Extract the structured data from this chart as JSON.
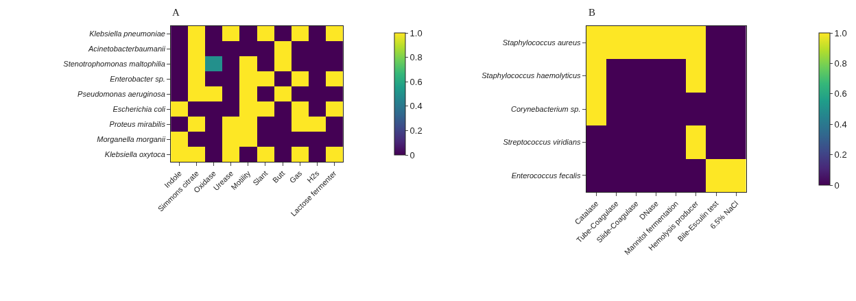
{
  "chart_data": [
    {
      "type": "heatmap",
      "title": "A",
      "categories": [
        "Indole",
        "Simmons citrate",
        "Oxidase",
        "Urease",
        "Motility",
        "Slant",
        "Butt",
        "Gas",
        "H2s",
        "Lactose fermenter"
      ],
      "y_categories": [
        "Klebsiella pneumoniae",
        "Acinetobacterbaumanii",
        "Stenotrophomonas maltophilia",
        "Enterobacter sp.",
        "Pseudomonas aeruginosa",
        "Escherichia coli",
        "Proteus mirabilis",
        "Morganella morganii",
        "Klebsiella oxytoca"
      ],
      "cells": [
        [
          0,
          1,
          0,
          1,
          0,
          1,
          0,
          1,
          0,
          1
        ],
        [
          0,
          1,
          0,
          0,
          0,
          0,
          1,
          0,
          0,
          0
        ],
        [
          0,
          1,
          0.5,
          0,
          1,
          0,
          1,
          0,
          0,
          0
        ],
        [
          0,
          1,
          0,
          0,
          1,
          1,
          0,
          1,
          0,
          1
        ],
        [
          0,
          1,
          1,
          0,
          1,
          0,
          1,
          0,
          0,
          0
        ],
        [
          1,
          0,
          0,
          0,
          1,
          1,
          0,
          1,
          0,
          1
        ],
        [
          0,
          1,
          0,
          1,
          1,
          0,
          0,
          1,
          1,
          0
        ],
        [
          1,
          0,
          0,
          1,
          1,
          0,
          0,
          0,
          0,
          0
        ],
        [
          1,
          1,
          0,
          1,
          0,
          1,
          0,
          1,
          0,
          1
        ]
      ],
      "clim": [
        0,
        1
      ],
      "cticks": [
        0,
        0.2,
        0.4,
        0.6,
        0.8,
        {
          "value": 1,
          "label": "1.0"
        }
      ]
    },
    {
      "type": "heatmap",
      "title": "B",
      "categories": [
        "Catalase",
        "Tube-Coagulase",
        "Slide-Coagulase",
        "DNase",
        "Mannitol fermentation",
        "Hemolysis producer",
        "Bile-Esculin test",
        "6.5% NaCl"
      ],
      "y_categories": [
        "Staphylococcus aureus",
        "Staphylococcus haemolyticus",
        "Corynebacterium sp.",
        "Streptococcus viridians",
        "Enterococcus fecalis"
      ],
      "cells": [
        [
          1,
          1,
          1,
          1,
          1,
          1,
          0,
          0
        ],
        [
          1,
          0,
          0,
          0,
          0,
          1,
          0,
          0
        ],
        [
          1,
          0,
          0,
          0,
          0,
          0,
          0,
          0
        ],
        [
          0,
          0,
          0,
          0,
          0,
          1,
          0,
          0
        ],
        [
          0,
          0,
          0,
          0,
          0,
          0,
          1,
          1
        ]
      ],
      "clim": [
        0,
        1
      ],
      "cticks": [
        0,
        0.2,
        0.4,
        0.6,
        0.8,
        {
          "value": 1,
          "label": "1.0"
        }
      ]
    }
  ]
}
